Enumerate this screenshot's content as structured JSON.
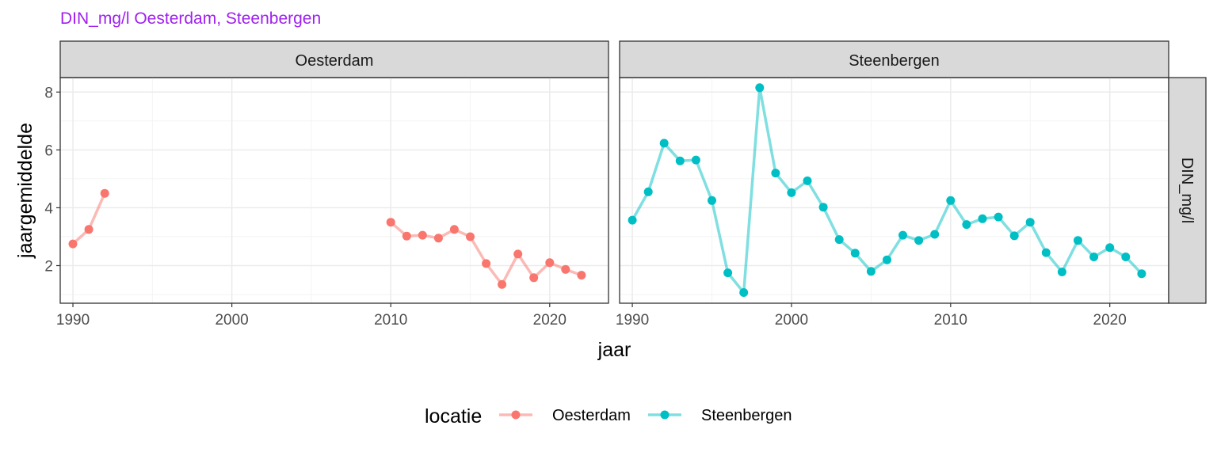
{
  "title": "DIN_mg/l Oesterdam, Steenbergen",
  "colors": {
    "title": "#a020f0",
    "Oesterdam": "#F8766D",
    "Steenbergen": "#00BFC4"
  },
  "chart_data": {
    "type": "line",
    "xlabel": "jaar",
    "ylabel": "jaargemiddelde",
    "facet_row_label": "DIN_mg/l",
    "xlim": [
      1989.2,
      2023.7
    ],
    "ylim": [
      0.7,
      8.5
    ],
    "x_ticks": [
      1990,
      2000,
      2010,
      2020
    ],
    "y_ticks": [
      2,
      4,
      6,
      8
    ],
    "grid": true,
    "legend": {
      "title": "locatie",
      "position": "bottom",
      "entries": [
        "Oesterdam",
        "Steenbergen"
      ]
    },
    "panels": [
      {
        "label": "Oesterdam",
        "series": [
          {
            "name": "Oesterdam",
            "segments": [
              [
                [
                  1990,
                  2.75
                ],
                [
                  1991,
                  3.25
                ],
                [
                  1992,
                  4.5
                ]
              ],
              [
                [
                  2010,
                  3.5
                ],
                [
                  2011,
                  3.02
                ],
                [
                  2012,
                  3.05
                ],
                [
                  2013,
                  2.95
                ],
                [
                  2014,
                  3.25
                ],
                [
                  2015,
                  3.0
                ],
                [
                  2016,
                  2.07
                ],
                [
                  2017,
                  1.35
                ],
                [
                  2018,
                  2.4
                ],
                [
                  2019,
                  1.58
                ],
                [
                  2020,
                  2.1
                ],
                [
                  2021,
                  1.87
                ],
                [
                  2022,
                  1.67
                ]
              ]
            ]
          }
        ]
      },
      {
        "label": "Steenbergen",
        "series": [
          {
            "name": "Steenbergen",
            "segments": [
              [
                [
                  1990,
                  3.57
                ],
                [
                  1991,
                  4.55
                ],
                [
                  1992,
                  6.23
                ],
                [
                  1993,
                  5.62
                ],
                [
                  1994,
                  5.65
                ],
                [
                  1995,
                  4.25
                ],
                [
                  1996,
                  1.75
                ],
                [
                  1997,
                  1.07
                ],
                [
                  1998,
                  8.15
                ],
                [
                  1999,
                  5.2
                ],
                [
                  2000,
                  4.52
                ],
                [
                  2001,
                  4.93
                ],
                [
                  2002,
                  4.02
                ],
                [
                  2003,
                  2.9
                ],
                [
                  2004,
                  2.43
                ],
                [
                  2005,
                  1.8
                ],
                [
                  2006,
                  2.2
                ],
                [
                  2007,
                  3.05
                ],
                [
                  2008,
                  2.87
                ],
                [
                  2009,
                  3.08
                ],
                [
                  2010,
                  4.25
                ],
                [
                  2011,
                  3.42
                ],
                [
                  2012,
                  3.62
                ],
                [
                  2013,
                  3.68
                ],
                [
                  2014,
                  3.03
                ],
                [
                  2015,
                  3.5
                ],
                [
                  2016,
                  2.45
                ],
                [
                  2017,
                  1.78
                ],
                [
                  2018,
                  2.87
                ],
                [
                  2019,
                  2.3
                ],
                [
                  2020,
                  2.62
                ],
                [
                  2021,
                  2.3
                ],
                [
                  2022,
                  1.72
                ]
              ]
            ]
          }
        ]
      }
    ]
  }
}
